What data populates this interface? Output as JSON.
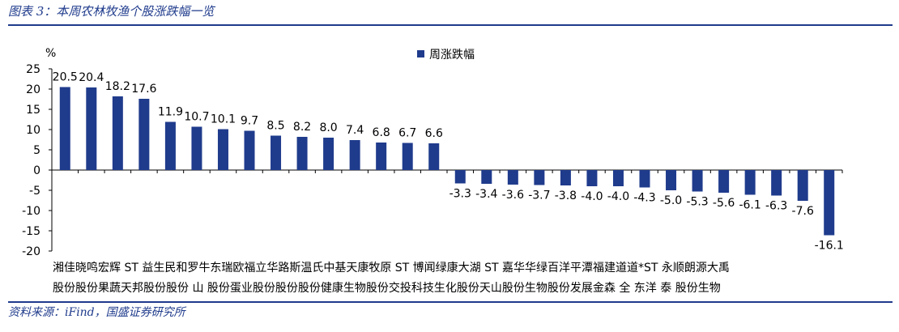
{
  "figure": {
    "title": "图表 3：本周农林牧渔个股涨跌幅一览",
    "source": "资料来源：iFind，国盛证券研究所"
  },
  "chart_data": {
    "type": "bar",
    "unit_label": "%",
    "legend": "周涨跌幅",
    "legend_placement": "top-center",
    "ylim": [
      -20,
      25
    ],
    "yticks": [
      25,
      20,
      15,
      10,
      5,
      0,
      -5,
      -10,
      -15,
      -20
    ],
    "grid": false,
    "bar_color": "#1f3b8c",
    "series": [
      {
        "name": "周涨跌幅",
        "values": [
          20.5,
          20.4,
          18.2,
          17.6,
          11.9,
          10.7,
          10.1,
          9.7,
          8.5,
          8.2,
          8.0,
          7.4,
          6.8,
          6.7,
          6.6,
          -3.3,
          -3.4,
          -3.6,
          -3.7,
          -3.8,
          -4.0,
          -4.0,
          -4.3,
          -5.0,
          -5.3,
          -5.6,
          -6.1,
          -6.3,
          -7.6,
          -16.1
        ]
      }
    ],
    "categories": [
      "湘佳股份",
      "晓鸣股份",
      "宏辉果蔬",
      "ST天邦",
      "益生股份",
      "民和股份",
      "罗牛山",
      "东瑞股份",
      "欧福蛋业",
      "立华股份",
      "路斯股份",
      "温氏股份",
      "中基健康",
      "天康生物",
      "牧原股份",
      "ST交投",
      "博闻科技",
      "绿康生化",
      "大湖股份",
      "ST天山",
      "嘉华股份",
      "华绿生物",
      "百洋股份",
      "平潭发展",
      "福建金森",
      "道道全",
      "*ST东洋",
      "永顺泰",
      "朗源股份",
      "大禹生物"
    ],
    "category_lines": [
      "湘佳晓鸣宏辉 ST 益生民和罗牛东瑞欧福立华路斯温氏中基天康牧原 ST 博闻绿康大湖 ST 嘉华华绿百洋平潭福建道道*ST 永顺朗源大禹",
      "股份股份果蔬天邦股份股份 山 股份蛋业股份股份股份健康生物股份交投科技生化股份天山股份生物股份发展金森 全 东洋 泰 股份生物"
    ]
  }
}
